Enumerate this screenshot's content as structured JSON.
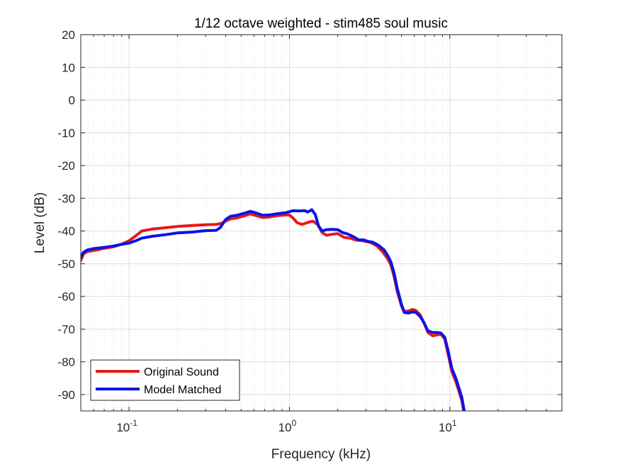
{
  "chart_data": {
    "type": "line",
    "title": "1/12 octave weighted - stim485 soul music",
    "xlabel": "Frequency (kHz)",
    "ylabel": "Level (dB)",
    "xscale": "log",
    "xlim": [
      0.05,
      50
    ],
    "ylim": [
      -95,
      20
    ],
    "grid": true,
    "minor_grid": true,
    "legend_position": "bottom-left",
    "x_ticks": [
      {
        "value": 0.1,
        "base": "10",
        "exp": "-1"
      },
      {
        "value": 1,
        "base": "10",
        "exp": "0"
      },
      {
        "value": 10,
        "base": "10",
        "exp": "1"
      }
    ],
    "y_ticks": [
      20,
      10,
      0,
      -10,
      -20,
      -30,
      -40,
      -50,
      -60,
      -70,
      -80,
      -90
    ],
    "series": [
      {
        "name": "Original Sound",
        "color": "#e41a1c",
        "points": [
          [
            0.05,
            -49
          ],
          [
            0.052,
            -47
          ],
          [
            0.055,
            -46.3
          ],
          [
            0.06,
            -46
          ],
          [
            0.07,
            -45.3
          ],
          [
            0.08,
            -44.8
          ],
          [
            0.09,
            -44
          ],
          [
            0.1,
            -43
          ],
          [
            0.11,
            -41.5
          ],
          [
            0.12,
            -40
          ],
          [
            0.14,
            -39.4
          ],
          [
            0.17,
            -39
          ],
          [
            0.2,
            -38.6
          ],
          [
            0.25,
            -38.3
          ],
          [
            0.3,
            -38.1
          ],
          [
            0.35,
            -38
          ],
          [
            0.38,
            -37.6
          ],
          [
            0.4,
            -37
          ],
          [
            0.43,
            -36.3
          ],
          [
            0.47,
            -36
          ],
          [
            0.52,
            -35.4
          ],
          [
            0.57,
            -34.8
          ],
          [
            0.62,
            -35.3
          ],
          [
            0.68,
            -35.9
          ],
          [
            0.75,
            -35.7
          ],
          [
            0.85,
            -35.3
          ],
          [
            0.95,
            -35.1
          ],
          [
            1.0,
            -35.1
          ],
          [
            1.05,
            -36
          ],
          [
            1.12,
            -37.5
          ],
          [
            1.2,
            -38
          ],
          [
            1.3,
            -37.4
          ],
          [
            1.4,
            -37
          ],
          [
            1.5,
            -38
          ],
          [
            1.6,
            -40.5
          ],
          [
            1.7,
            -41.3
          ],
          [
            1.85,
            -41
          ],
          [
            2.0,
            -40.8
          ],
          [
            2.2,
            -42
          ],
          [
            2.4,
            -42.2
          ],
          [
            2.6,
            -42.8
          ],
          [
            2.8,
            -42.9
          ],
          [
            3.0,
            -43.2
          ],
          [
            3.2,
            -43.5
          ],
          [
            3.5,
            -44.5
          ],
          [
            3.8,
            -46.3
          ],
          [
            4.1,
            -48.5
          ],
          [
            4.3,
            -50.5
          ],
          [
            4.5,
            -54
          ],
          [
            4.7,
            -58.5
          ],
          [
            5.0,
            -63
          ],
          [
            5.2,
            -64.5
          ],
          [
            5.5,
            -64.5
          ],
          [
            5.8,
            -64
          ],
          [
            6.1,
            -64.2
          ],
          [
            6.5,
            -65.5
          ],
          [
            6.9,
            -68
          ],
          [
            7.3,
            -71
          ],
          [
            7.8,
            -72
          ],
          [
            8.3,
            -71.8
          ],
          [
            8.8,
            -71.5
          ],
          [
            9.3,
            -73
          ],
          [
            9.8,
            -78
          ],
          [
            10.3,
            -83
          ],
          [
            10.9,
            -86
          ],
          [
            11.4,
            -89
          ],
          [
            11.9,
            -92
          ],
          [
            12.2,
            -95
          ]
        ]
      },
      {
        "name": "Model Matched",
        "color": "#0a14e6",
        "points": [
          [
            0.05,
            -48
          ],
          [
            0.052,
            -46.5
          ],
          [
            0.055,
            -45.8
          ],
          [
            0.06,
            -45.4
          ],
          [
            0.07,
            -45
          ],
          [
            0.08,
            -44.6
          ],
          [
            0.09,
            -44.1
          ],
          [
            0.1,
            -43.7
          ],
          [
            0.11,
            -43
          ],
          [
            0.12,
            -42.2
          ],
          [
            0.14,
            -41.6
          ],
          [
            0.17,
            -41.1
          ],
          [
            0.2,
            -40.6
          ],
          [
            0.25,
            -40.3
          ],
          [
            0.3,
            -39.9
          ],
          [
            0.35,
            -39.8
          ],
          [
            0.37,
            -39
          ],
          [
            0.4,
            -36.5
          ],
          [
            0.43,
            -35.5
          ],
          [
            0.47,
            -35.2
          ],
          [
            0.52,
            -34.6
          ],
          [
            0.57,
            -34
          ],
          [
            0.62,
            -34.5
          ],
          [
            0.68,
            -35.2
          ],
          [
            0.75,
            -35.1
          ],
          [
            0.85,
            -34.7
          ],
          [
            0.95,
            -34.4
          ],
          [
            1.05,
            -33.8
          ],
          [
            1.15,
            -33.9
          ],
          [
            1.25,
            -33.8
          ],
          [
            1.3,
            -34.2
          ],
          [
            1.38,
            -33.5
          ],
          [
            1.45,
            -35
          ],
          [
            1.52,
            -38.5
          ],
          [
            1.6,
            -40
          ],
          [
            1.7,
            -39.6
          ],
          [
            1.85,
            -39.5
          ],
          [
            2.0,
            -39.6
          ],
          [
            2.15,
            -40.5
          ],
          [
            2.3,
            -40.9
          ],
          [
            2.5,
            -41.7
          ],
          [
            2.7,
            -42.7
          ],
          [
            2.9,
            -42.7
          ],
          [
            3.1,
            -43.2
          ],
          [
            3.3,
            -43.4
          ],
          [
            3.6,
            -44.4
          ],
          [
            3.9,
            -45.8
          ],
          [
            4.1,
            -47.5
          ],
          [
            4.3,
            -49.5
          ],
          [
            4.5,
            -53
          ],
          [
            4.7,
            -57.5
          ],
          [
            5.0,
            -62.5
          ],
          [
            5.2,
            -64.9
          ],
          [
            5.5,
            -65.1
          ],
          [
            5.8,
            -64.8
          ],
          [
            6.1,
            -64.8
          ],
          [
            6.5,
            -66
          ],
          [
            6.9,
            -68
          ],
          [
            7.3,
            -70.5
          ],
          [
            7.8,
            -71
          ],
          [
            8.3,
            -71
          ],
          [
            8.8,
            -71.2
          ],
          [
            9.3,
            -72.5
          ],
          [
            9.8,
            -77
          ],
          [
            10.3,
            -82
          ],
          [
            10.9,
            -85
          ],
          [
            11.4,
            -88
          ],
          [
            11.9,
            -91
          ],
          [
            12.3,
            -95
          ]
        ]
      }
    ]
  }
}
